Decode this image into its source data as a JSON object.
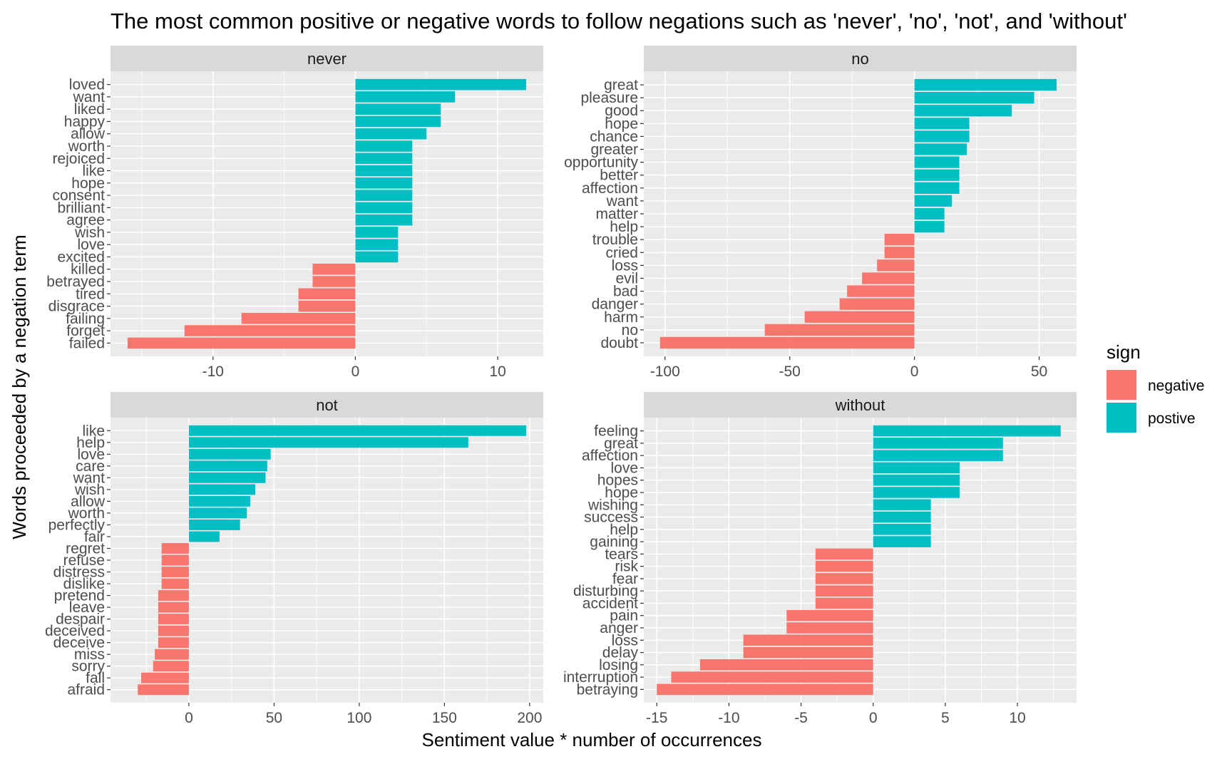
{
  "chart_data": {
    "type": "bar",
    "orientation": "horizontal",
    "title": "The most common positive or negative words to follow negations such as 'never', 'no', 'not', and 'without'",
    "xlabel": "Sentiment value * number of occurrences",
    "ylabel": "Words proceeded by a negation term",
    "grid": true,
    "legend": {
      "title": "sign",
      "position": "right",
      "entries": [
        {
          "label": "negative",
          "color": "#F8766D"
        },
        {
          "label": "postive",
          "color": "#00BFC4"
        }
      ]
    },
    "facets": [
      {
        "name": "never",
        "xlim": [
          -17.2,
          13.2
        ],
        "xticks": [
          -10,
          0,
          10
        ],
        "xtick_labels": [
          "-10",
          "0",
          "10"
        ],
        "categories": [
          "loved",
          "want",
          "liked",
          "happy",
          "allow",
          "worth",
          "rejoiced",
          "like",
          "hope",
          "consent",
          "brilliant",
          "agree",
          "wish",
          "love",
          "excited",
          "killed",
          "betrayed",
          "tired",
          "disgrace",
          "failing",
          "forget",
          "failed"
        ],
        "values": [
          12,
          7,
          6,
          6,
          5,
          4,
          4,
          4,
          4,
          4,
          4,
          4,
          3,
          3,
          3,
          -3,
          -3,
          -4,
          -4,
          -8,
          -12,
          -16
        ]
      },
      {
        "name": "no",
        "xlim": [
          -108.5,
          65
        ],
        "xticks": [
          -100,
          -50,
          0,
          50
        ],
        "xtick_labels": [
          "-100",
          "-50",
          "0",
          "50"
        ],
        "categories": [
          "great",
          "pleasure",
          "good",
          "hope",
          "chance",
          "greater",
          "opportunity",
          "better",
          "affection",
          "want",
          "matter",
          "help",
          "trouble",
          "cried",
          "loss",
          "evil",
          "bad",
          "danger",
          "harm",
          "no",
          "doubt"
        ],
        "values": [
          57,
          48,
          39,
          22,
          22,
          21,
          18,
          18,
          18,
          15,
          12,
          12,
          -12,
          -12,
          -15,
          -21,
          -27,
          -30,
          -44,
          -60,
          -102
        ]
      },
      {
        "name": "not",
        "xlim": [
          -46,
          208
        ],
        "xticks": [
          0,
          50,
          100,
          150,
          200
        ],
        "xtick_labels": [
          "0",
          "50",
          "100",
          "150",
          "200"
        ],
        "categories": [
          "like",
          "help",
          "love",
          "care",
          "want",
          "wish",
          "allow",
          "worth",
          "perfectly",
          "fair",
          "regret",
          "refuse",
          "distress",
          "dislike",
          "pretend",
          "leave",
          "despair",
          "deceived",
          "deceive",
          "miss",
          "sorry",
          "fall",
          "afraid"
        ],
        "values": [
          198,
          164,
          48,
          46,
          45,
          39,
          36,
          34,
          30,
          18,
          -16,
          -16,
          -16,
          -16,
          -18,
          -18,
          -18,
          -18,
          -18,
          -20,
          -21,
          -28,
          -30
        ]
      },
      {
        "name": "without",
        "xlim": [
          -15.9,
          14.1
        ],
        "xticks": [
          -15,
          -10,
          -5,
          0,
          5,
          10
        ],
        "xtick_labels": [
          "-15",
          "-10",
          "-5",
          "0",
          "5",
          "10"
        ],
        "categories": [
          "feeling",
          "great",
          "affection",
          "love",
          "hopes",
          "hope",
          "wishing",
          "success",
          "help",
          "gaining",
          "tears",
          "risk",
          "fear",
          "disturbing",
          "accident",
          "pain",
          "anger",
          "loss",
          "delay",
          "losing",
          "interruption",
          "betraying"
        ],
        "values": [
          13,
          9,
          9,
          6,
          6,
          6,
          4,
          4,
          4,
          4,
          -4,
          -4,
          -4,
          -4,
          -4,
          -6,
          -6,
          -9,
          -9,
          -12,
          -14,
          -15
        ]
      }
    ]
  }
}
